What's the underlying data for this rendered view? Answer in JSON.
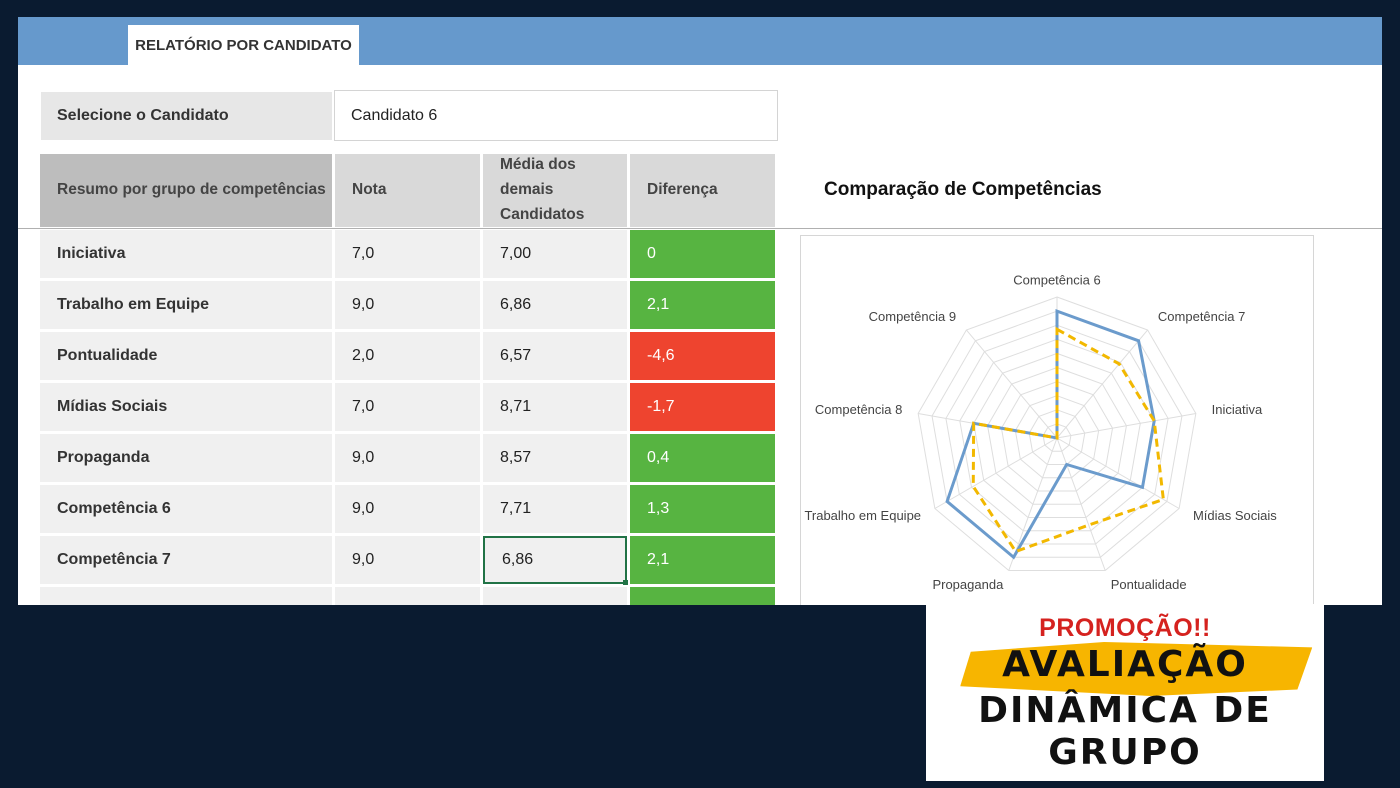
{
  "tab_label": "RELATÓRIO POR CANDIDATO",
  "selector": {
    "label": "Selecione o Candidato",
    "value": "Candidato 6"
  },
  "table": {
    "headers": [
      "Resumo por grupo de competências",
      "Nota",
      "Média dos demais Candidatos",
      "Diferença"
    ],
    "rows": [
      {
        "name": "Iniciativa",
        "nota": "7,0",
        "media": "7,00",
        "diferenca": "0",
        "status": "positive"
      },
      {
        "name": "Trabalho em Equipe",
        "nota": "9,0",
        "media": "6,86",
        "diferenca": "2,1",
        "status": "positive"
      },
      {
        "name": "Pontualidade",
        "nota": "2,0",
        "media": "6,57",
        "diferenca": "-4,6",
        "status": "negative"
      },
      {
        "name": "Mídias Sociais",
        "nota": "7,0",
        "media": "8,71",
        "diferenca": "-1,7",
        "status": "negative"
      },
      {
        "name": "Propaganda",
        "nota": "9,0",
        "media": "8,57",
        "diferenca": "0,4",
        "status": "positive"
      },
      {
        "name": "Competência 6",
        "nota": "9,0",
        "media": "7,71",
        "diferenca": "1,3",
        "status": "positive"
      },
      {
        "name": "Competência 7",
        "nota": "9,0",
        "media": "6,86",
        "diferenca": "2,1",
        "status": "positive"
      },
      {
        "name": "",
        "nota": "",
        "media": "",
        "diferenca": "",
        "status": "positive"
      }
    ],
    "selected_cell": "Competência 7 / Média dos demais Candidatos"
  },
  "colors": {
    "positive": "#57b441",
    "negative": "#ee442f",
    "header_bar": "#6699cc",
    "series_candidate": "#6b9bcc",
    "series_average": "#f2b800"
  },
  "chart_data": {
    "type": "radar",
    "title": "Comparação de Competências",
    "axes": [
      "Competência 6",
      "Competência 7",
      "Iniciativa",
      "Mídias Sociais",
      "Pontualidade",
      "Propaganda",
      "Trabalho em Equipe",
      "Competência 8",
      "Competência 9"
    ],
    "rmax": 10,
    "rings": 10,
    "series": [
      {
        "style": "solid",
        "color": "#6b9bcc",
        "values": [
          9,
          9,
          7,
          7,
          2,
          9,
          9,
          6,
          0
        ]
      },
      {
        "style": "dashed",
        "color": "#f2b800",
        "values": [
          7.71,
          6.86,
          7.0,
          8.71,
          6.57,
          8.57,
          6.86,
          6.0,
          0
        ]
      }
    ]
  },
  "promo": {
    "line1": "PROMOÇÃO!!",
    "line2": "AVALIAÇÃO",
    "line3": "DINÂMICA DE",
    "line4": "GRUPO"
  }
}
